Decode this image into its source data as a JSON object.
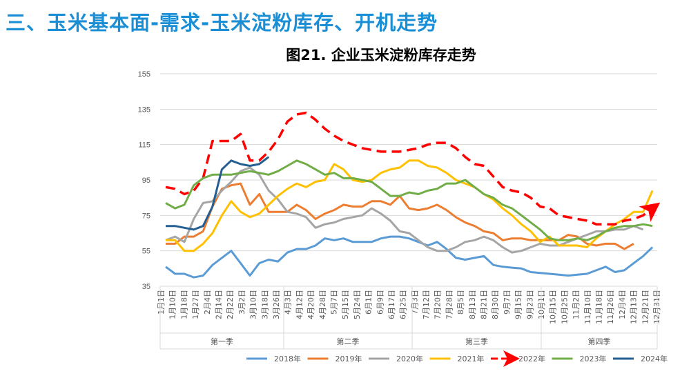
{
  "header": {
    "title": "三、玉米基本面-需求-玉米淀粉库存、开机走势"
  },
  "chart_data": {
    "type": "line",
    "title": "图21. 企业玉米淀粉库存走势",
    "ylim": [
      35,
      155
    ],
    "yticks": [
      35,
      55,
      75,
      95,
      115,
      135,
      155
    ],
    "grid": true,
    "legend": "bottom",
    "x_tick_labels": [
      "1月1日",
      "1月10日",
      "1月18日",
      "1月27日",
      "2月4日",
      "2月14日",
      "2月22日",
      "3月2日",
      "3月10日",
      "3月18日",
      "3月26日",
      "4月3日",
      "4月12日",
      "4月20日",
      "4月28日",
      "5月7日",
      "5月15日",
      "5月24日",
      "6月1日",
      "6月9日",
      "6月17日",
      "6月25日",
      "7月3日",
      "7月12日",
      "7月20日",
      "7月28日",
      "8月5日",
      "8月13日",
      "8月21日",
      "8月30日",
      "9月7日",
      "9月15日",
      "9月23日",
      "10月1日",
      "10月15日",
      "10月25日",
      "11月2日",
      "11月10日",
      "11月18日",
      "11月26日",
      "12月4日",
      "12月13日",
      "12月21日",
      "12月31日"
    ],
    "quarters": [
      "第一季",
      "第二季",
      "第三季",
      "第四季"
    ],
    "series": [
      {
        "name": "2018年",
        "color": "#5b9bd5",
        "dashed": false,
        "values": [
          46,
          42,
          42,
          40,
          41,
          47,
          51,
          55,
          48,
          41,
          48,
          50,
          49,
          54,
          56,
          56,
          58,
          62,
          61,
          62,
          60,
          60,
          60,
          62,
          63,
          63,
          62,
          60,
          58,
          60,
          56,
          51,
          50,
          51,
          52,
          47,
          46,
          45.5,
          45,
          43,
          42.5,
          42,
          41.5,
          41,
          41.5,
          42,
          44,
          46,
          43,
          44,
          48,
          52,
          57
        ]
      },
      {
        "name": "2019年",
        "color": "#ed7d31",
        "dashed": false,
        "values": [
          59,
          59,
          63,
          63,
          66,
          80,
          90,
          92,
          93,
          81,
          87,
          77,
          77,
          77,
          81,
          78,
          73,
          76,
          78,
          81,
          80,
          80,
          83,
          83,
          81,
          86,
          79,
          78,
          79,
          81,
          78,
          74,
          71,
          69,
          66,
          65,
          61,
          62,
          62,
          61,
          61,
          61,
          61,
          64,
          63,
          59,
          58,
          59,
          59,
          56,
          59
        ]
      },
      {
        "name": "2020年",
        "color": "#a5a5a5",
        "dashed": false,
        "values": [
          61,
          63,
          60,
          73,
          82,
          83,
          89,
          94,
          100,
          102,
          98,
          89,
          84,
          77,
          76,
          74,
          68,
          70,
          71,
          73,
          74,
          75,
          79,
          76,
          72,
          66,
          65,
          61,
          57,
          55,
          55,
          57,
          60,
          61,
          63,
          61,
          57,
          54,
          55,
          57,
          59,
          58,
          58,
          60,
          62,
          64,
          66,
          66,
          67,
          67,
          69,
          67
        ]
      },
      {
        "name": "2021年",
        "color": "#ffc000",
        "dashed": false,
        "values": [
          61,
          61,
          55,
          55,
          59,
          65,
          75,
          83,
          77,
          74,
          76,
          81,
          86,
          90,
          93,
          91,
          94,
          95,
          104,
          101,
          95,
          94,
          95,
          99,
          101,
          102,
          106,
          106,
          103,
          102,
          99,
          95,
          93,
          91,
          87,
          84,
          79,
          75,
          70,
          66,
          60,
          63,
          58,
          58,
          58,
          57,
          62,
          66,
          70,
          73,
          77,
          77,
          89
        ]
      },
      {
        "name": "2022年",
        "color": "#ff0000",
        "dashed": true,
        "values": [
          91,
          90,
          87,
          89,
          96,
          117,
          117,
          117,
          121,
          106,
          106,
          111,
          118,
          128,
          132,
          133,
          129,
          124,
          120,
          117,
          115,
          113,
          112,
          111,
          111,
          111,
          112,
          113,
          115,
          116,
          116,
          113,
          108,
          104,
          103,
          97,
          91,
          89,
          88,
          85,
          80,
          79,
          75,
          74,
          73,
          72,
          70,
          70,
          70,
          72,
          73,
          75,
          79
        ]
      },
      {
        "name": "2023年",
        "color": "#70ad47",
        "dashed": false,
        "values": [
          82,
          79,
          81,
          92,
          96,
          98,
          98,
          98,
          99,
          100,
          99,
          98,
          100,
          103,
          106,
          104,
          101,
          98,
          99,
          96,
          96,
          95,
          94,
          90,
          86,
          86,
          88,
          87,
          89,
          90,
          93,
          93,
          95,
          91,
          87,
          85,
          81,
          79,
          75,
          71,
          67,
          62,
          61,
          61,
          62,
          61,
          63,
          66,
          68,
          69,
          69,
          70,
          69
        ]
      },
      {
        "name": "2024年",
        "color": "#255e91",
        "dashed": false,
        "values": [
          69,
          69,
          68,
          67,
          69,
          80,
          101,
          106,
          104,
          103,
          104,
          108
        ]
      }
    ]
  }
}
